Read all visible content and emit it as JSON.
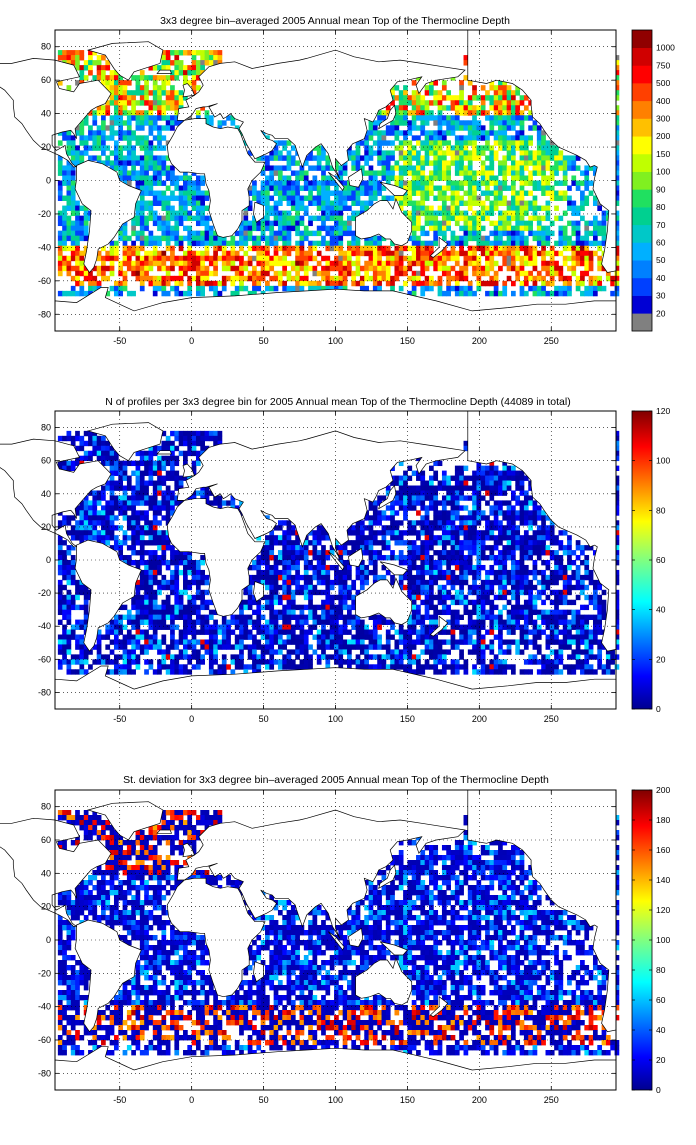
{
  "panels": [
    {
      "title": "3x3 degree bin–averaged 2005 Annual mean Top of the Thermocline Depth",
      "xticks": [
        "-50",
        "0",
        "50",
        "100",
        "150",
        "200",
        "250"
      ],
      "yticks": [
        "80",
        "60",
        "40",
        "20",
        "0",
        "-20",
        "-40",
        "-60",
        "-80"
      ],
      "colorbar_labels": [
        "1000",
        "750",
        "500",
        "400",
        "300",
        "200",
        "150",
        "100",
        "90",
        "80",
        "70",
        "60",
        "50",
        "40",
        "30",
        "20"
      ],
      "colorbar_type": "discrete",
      "colormap": [
        "#808080",
        "#0000d4",
        "#0040ff",
        "#0080ff",
        "#00b0ff",
        "#00c8c8",
        "#00d090",
        "#20e060",
        "#80f020",
        "#c0ff00",
        "#ffff00",
        "#ffc000",
        "#ff8000",
        "#ff4000",
        "#ff0000",
        "#d00000",
        "#900000"
      ]
    },
    {
      "title": "N of profiles per 3x3 degree bin for 2005 Annual mean Top of the Thermocline Depth  (44089 in total)",
      "xticks": [
        "-50",
        "0",
        "50",
        "100",
        "150",
        "200",
        "250"
      ],
      "yticks": [
        "80",
        "60",
        "40",
        "20",
        "0",
        "-20",
        "-40",
        "-60",
        "-80"
      ],
      "colorbar_labels": [
        "120",
        "100",
        "80",
        "60",
        "40",
        "20",
        "0"
      ],
      "colorbar_type": "continuous",
      "colorbar_range": [
        0,
        120
      ]
    },
    {
      "title": "St. deviation for 3x3 degree bin–averaged 2005 Annual mean Top of the Thermocline Depth",
      "xticks": [
        "-50",
        "0",
        "50",
        "100",
        "150",
        "200",
        "250"
      ],
      "yticks": [
        "80",
        "60",
        "40",
        "20",
        "0",
        "-20",
        "-40",
        "-60",
        "-80"
      ],
      "colorbar_labels": [
        "200",
        "180",
        "160",
        "140",
        "120",
        "100",
        "80",
        "60",
        "40",
        "20",
        "0"
      ],
      "colorbar_type": "continuous",
      "colorbar_range": [
        0,
        200
      ]
    }
  ],
  "map_extent": {
    "lon": [
      -95,
      295
    ],
    "lat": [
      -90,
      90
    ],
    "bin_deg": 3
  },
  "jet_colors": [
    "#00008f",
    "#0000ff",
    "#0080ff",
    "#00ffff",
    "#80ff80",
    "#ffff00",
    "#ff8000",
    "#ff0000",
    "#800000"
  ]
}
